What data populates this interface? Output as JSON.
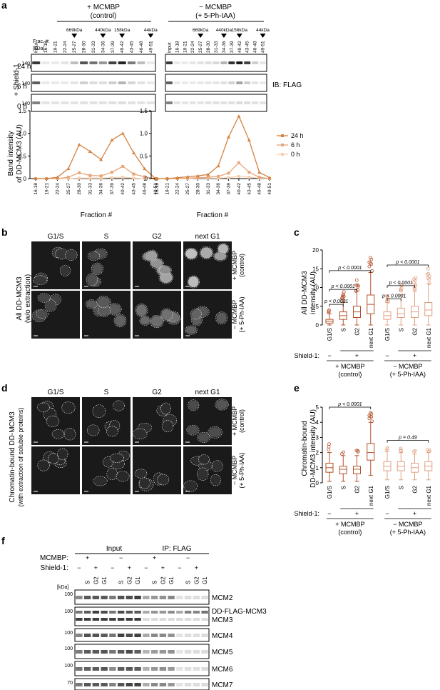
{
  "panels": {
    "a": "a",
    "b": "b",
    "c": "c",
    "d": "d",
    "e": "e",
    "f": "f"
  },
  "a": {
    "conditions": [
      {
        "line1": "+ MCMBP",
        "line2": "(control)"
      },
      {
        "line1": "− MCMBP",
        "line2": "(+ 5-Ph-IAA)"
      }
    ],
    "mw_markers": [
      "669kDa",
      "440kDa",
      "158kDa",
      "44kDa"
    ],
    "frac_label": "Frac. #:",
    "kda_label": "[kDa]",
    "lanes": [
      "Input",
      "16-18",
      "19-21",
      "22-24",
      "25-27",
      "28-30",
      "31-33",
      "34-36",
      "37-39",
      "40-42",
      "43-45",
      "46-48",
      "49-51"
    ],
    "times": [
      "24 h",
      "6 h",
      "0 h"
    ],
    "shield": "+ Shield-1",
    "band_kda": "140",
    "ib": "IB: FLAG",
    "ylabel1": "Band intensity",
    "ylabel2": "of DD-MCM3 (AU)",
    "xlabel": "Fraction #",
    "yticks": [
      "0",
      "0.5",
      "1.0",
      "1.5"
    ]
  },
  "chart_data": [
    {
      "type": "line",
      "title": "+ MCMBP (control)",
      "xlabel": "Fraction #",
      "ylabel": "Band intensity of DD-MCM3 (AU)",
      "ylim": [
        0,
        1.5
      ],
      "categories": [
        "16-18",
        "19-21",
        "22-24",
        "25-27",
        "28-30",
        "31-33",
        "34-36",
        "37-39",
        "40-42",
        "43-45",
        "46-48",
        "49-51"
      ],
      "series": [
        {
          "name": "24 h",
          "color": "#d4823f",
          "values": [
            0,
            0,
            0.03,
            0.22,
            0.75,
            0.6,
            0.42,
            0.85,
            1.0,
            0.57,
            0.22,
            0.0
          ]
        },
        {
          "name": "6 h",
          "color": "#e6a57a",
          "values": [
            0,
            0,
            0.0,
            0.03,
            0.13,
            0.07,
            0.06,
            0.14,
            0.27,
            0.1,
            0.04,
            0.0
          ]
        },
        {
          "name": "0 h",
          "color": "#f4d0b0",
          "values": [
            0,
            0,
            0,
            0,
            0.01,
            0.01,
            0.01,
            0.02,
            0.03,
            0.01,
            0.0,
            0.0
          ]
        }
      ],
      "legend": "right"
    },
    {
      "type": "line",
      "title": "− MCMBP (+ 5-Ph-IAA)",
      "xlabel": "Fraction #",
      "ylabel": "Band intensity of DD-MCM3 (AU)",
      "ylim": [
        0,
        1.5
      ],
      "categories": [
        "16-18",
        "19-21",
        "22-24",
        "25-27",
        "28-30",
        "31-33",
        "34-36",
        "37-39",
        "40-42",
        "43-45",
        "46-48",
        "49-51"
      ],
      "series": [
        {
          "name": "24 h",
          "color": "#d4823f",
          "values": [
            0,
            0,
            0.02,
            0.04,
            0.06,
            0.09,
            0.28,
            0.92,
            1.38,
            0.85,
            0.14,
            0.02
          ]
        },
        {
          "name": "6 h",
          "color": "#e6a57a",
          "values": [
            0,
            0,
            0.0,
            0.01,
            0.02,
            0.03,
            0.05,
            0.12,
            0.35,
            0.14,
            0.03,
            0.0
          ]
        },
        {
          "name": "0 h",
          "color": "#f4d0b0",
          "values": [
            0,
            0,
            0,
            0,
            0.01,
            0.01,
            0.01,
            0.02,
            0.05,
            0.03,
            0.01,
            0.0
          ]
        }
      ]
    }
  ],
  "b": {
    "phases": [
      "G1/S",
      "S",
      "G2",
      "next G1"
    ],
    "row_labels": [
      {
        "l1": "+ MCMBP",
        "l2": "(control)"
      },
      {
        "l1": "− MCMBP",
        "l2": "(+ 5-Ph-IAA)"
      }
    ],
    "side1": "All DD-MCM3",
    "side2": "(w/o extraction)"
  },
  "c": {
    "ylabel1": "All DD-MCM3",
    "ylabel2": "intensity (AU)",
    "yticks": [
      "0",
      "5",
      "10",
      "15",
      "20"
    ],
    "cats": [
      "G1/S",
      "S",
      "G2",
      "next G1",
      "G1/S",
      "S",
      "G2",
      "next G1"
    ],
    "pvals": [
      "p < 0.0001",
      "p < 0.0001",
      "p < 0.0001",
      "p < 0.0001",
      "p < 0.0001",
      "p < 0.0001"
    ],
    "shield": "Shield-1:",
    "minus": "−",
    "plus": "+",
    "groups": [
      {
        "l1": "+ MCMBP",
        "l2": "(control)"
      },
      {
        "l1": "− MCMBP",
        "l2": "(+ 5-Ph-IAA)"
      }
    ]
  },
  "d": {
    "side1": "Chromatin-bound DD-MCM3",
    "side2": "(with extraction of soluble proteins)"
  },
  "e": {
    "ylabel1": "Chromatin-bound",
    "ylabel2": "DD-MCM3 intensity (AU)",
    "yticks": [
      "0",
      "1",
      "2",
      "3",
      "4",
      "5"
    ],
    "pvals": [
      "p < 0.0001",
      "p = 0.49"
    ]
  },
  "f": {
    "mcmbp": "MCMBP:",
    "shield": "Shield-1:",
    "input": "Input",
    "ip": "IP: FLAG",
    "kda": "[kDa]",
    "lane_labels": [
      "S",
      "G2",
      "G1"
    ],
    "proteins": [
      "MCM2",
      "DD-FLAG-MCM3",
      "MCM3",
      "MCM4",
      "MCM5",
      "MCM6",
      "MCM7"
    ],
    "markers": [
      "100",
      "100",
      "100",
      "100",
      "100",
      "70"
    ]
  }
}
